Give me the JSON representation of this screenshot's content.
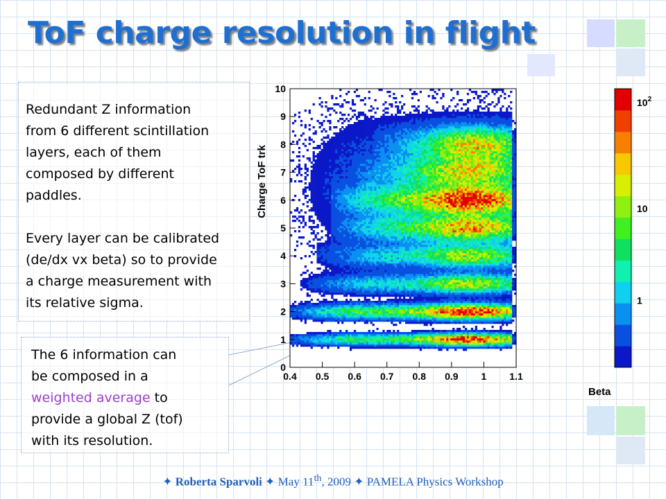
{
  "slide": {
    "title": "ToF charge resolution in flight",
    "box1": {
      "para1_lines": [
        "Redundant Z information",
        "from 6 different scintillation",
        "layers, each of them",
        "composed by different",
        "paddles."
      ],
      "para2_lines": [
        "Every layer can be calibrated",
        "(de/dx vx beta) so to provide",
        "a charge measurement with",
        "its relative sigma."
      ]
    },
    "box2": {
      "line1": "The 6 information can",
      "line2": "be composed in a",
      "highlight": "weighted average",
      "line3_rest": " to",
      "line4": "provide a global Z (tof)",
      "line5": "with its resolution."
    },
    "footer": {
      "star": "✦",
      "author": "Roberta Sparvoli",
      "date_pre": "May 11",
      "date_sup": "th",
      "date_post": ", 2009",
      "event": "PAMELA Physics Workshop"
    },
    "colors": {
      "title": "#1f6fd0",
      "highlight": "#9b3fc8",
      "footer": "#1f5fb8",
      "grid": "#d5e3ef"
    }
  },
  "chart_data": {
    "type": "heatmap",
    "xlabel": "Beta",
    "ylabel": "Charge ToF trk",
    "xlim": [
      0.4,
      1.1
    ],
    "ylim": [
      0,
      10
    ],
    "xticks": [
      "0.4",
      "0.5",
      "0.6",
      "0.7",
      "0.8",
      "0.9",
      "1",
      "1.1"
    ],
    "yticks": [
      "0",
      "1",
      "2",
      "3",
      "4",
      "5",
      "6",
      "7",
      "8",
      "9",
      "10"
    ],
    "colorscale": {
      "scale": "log",
      "labels": [
        "1",
        "10",
        "10^2"
      ]
    },
    "bands": [
      {
        "z": 1,
        "beta_start": 0.4,
        "peak_beta": 0.95,
        "intensity": 0.95
      },
      {
        "z": 2,
        "beta_start": 0.4,
        "peak_beta": 0.95,
        "intensity": 1.0
      },
      {
        "z": 3,
        "beta_start": 0.45,
        "peak_beta": 0.95,
        "intensity": 0.6
      },
      {
        "z": 4,
        "beta_start": 0.5,
        "peak_beta": 0.95,
        "intensity": 0.55
      },
      {
        "z": 5,
        "beta_start": 0.55,
        "peak_beta": 0.95,
        "intensity": 0.7
      },
      {
        "z": 6,
        "beta_start": 0.55,
        "peak_beta": 0.95,
        "intensity": 0.9
      },
      {
        "z": 7,
        "beta_start": 0.62,
        "peak_beta": 0.95,
        "intensity": 0.55
      },
      {
        "z": 8,
        "beta_start": 0.68,
        "peak_beta": 0.97,
        "intensity": 0.6
      }
    ]
  }
}
